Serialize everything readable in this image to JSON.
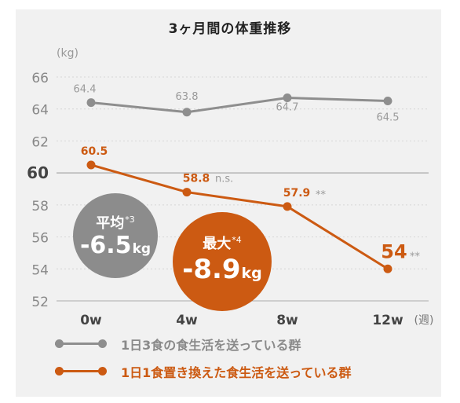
{
  "chart_data": {
    "type": "line",
    "title": "3ヶ月間の体重推移",
    "ylabel": "(kg)",
    "xlabel": "(週)",
    "categories": [
      "0w",
      "4w",
      "8w",
      "12w"
    ],
    "ylim": [
      52,
      66
    ],
    "yticks": [
      52,
      54,
      56,
      58,
      60,
      62,
      64,
      66
    ],
    "grid": true,
    "legend_position": "bottom",
    "series": [
      {
        "name": "1日3食の食生活を送っている群",
        "color": "#8e8e8e",
        "values": [
          64.4,
          63.8,
          64.7,
          64.5
        ],
        "labels": [
          "64.4",
          "63.8",
          "64.7",
          "64.5"
        ]
      },
      {
        "name": "1日1食置き換えた食生活を送っている群",
        "color": "#cc5a12",
        "values": [
          60.5,
          58.8,
          57.9,
          54
        ],
        "labels": [
          "60.5",
          "58.8",
          "57.9",
          "54"
        ],
        "annotations": [
          "",
          "n.s.",
          "**",
          "**"
        ]
      }
    ],
    "callouts": [
      {
        "label": "平均",
        "note": "*3",
        "value": "-6.5",
        "unit": "kg",
        "color": "#8c8c8c"
      },
      {
        "label": "最大",
        "note": "*4",
        "value": "-8.9",
        "unit": "kg",
        "color": "#cc5a12"
      }
    ]
  }
}
